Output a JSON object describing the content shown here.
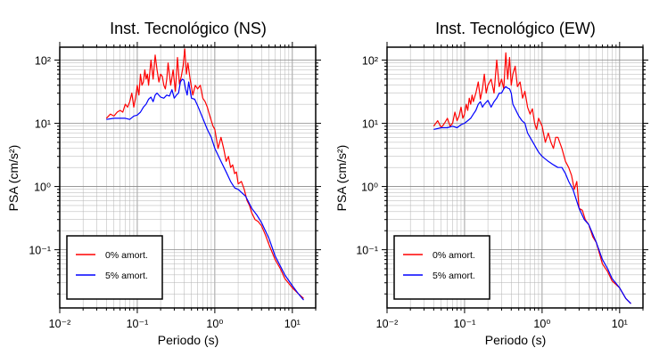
{
  "chart_data": [
    {
      "type": "line",
      "title": "Inst. Tecnológico (NS)",
      "xlabel": "Periodo (s)",
      "ylabel": "PSA (cm/s²)",
      "x_scale": "log",
      "y_scale": "log",
      "xlim": [
        0.01,
        20
      ],
      "ylim": [
        0.012,
        160
      ],
      "grid": true,
      "legend_placement": "bottom-left",
      "x_tick_labels": [
        "10⁻²",
        "10⁻¹",
        "10⁰",
        "10¹"
      ],
      "y_tick_labels": [
        "10⁻¹",
        "10⁰",
        "10¹",
        "10²"
      ],
      "series": [
        {
          "name": "0% amort.",
          "color": "#ff0000",
          "x": [
            0.04,
            0.045,
            0.05,
            0.055,
            0.06,
            0.065,
            0.07,
            0.075,
            0.08,
            0.085,
            0.09,
            0.095,
            0.1,
            0.105,
            0.11,
            0.115,
            0.12,
            0.125,
            0.13,
            0.135,
            0.14,
            0.15,
            0.16,
            0.17,
            0.18,
            0.19,
            0.2,
            0.21,
            0.22,
            0.23,
            0.24,
            0.25,
            0.27,
            0.29,
            0.31,
            0.33,
            0.35,
            0.37,
            0.39,
            0.41,
            0.43,
            0.45,
            0.48,
            0.52,
            0.56,
            0.6,
            0.65,
            0.7,
            0.75,
            0.8,
            0.85,
            0.9,
            0.95,
            1.0,
            1.1,
            1.2,
            1.3,
            1.4,
            1.5,
            1.6,
            1.7,
            1.8,
            1.9,
            2.0,
            2.2,
            2.4,
            2.6,
            2.8,
            3.0,
            3.3,
            3.6,
            4.0,
            4.5,
            5.0,
            6.0,
            7.0,
            8.0,
            10.0,
            12.0,
            14.0
          ],
          "y": [
            12,
            14,
            13,
            15,
            16,
            15,
            20,
            18,
            22,
            30,
            18,
            25,
            40,
            28,
            60,
            40,
            45,
            70,
            50,
            60,
            40,
            100,
            50,
            120,
            70,
            45,
            60,
            55,
            40,
            35,
            50,
            90,
            40,
            70,
            32,
            110,
            42,
            55,
            80,
            150,
            60,
            90,
            50,
            28,
            40,
            35,
            40,
            25,
            22,
            18,
            14,
            11,
            9,
            8,
            4,
            6,
            4,
            2.5,
            3,
            2,
            2.2,
            1.6,
            1.7,
            1.1,
            1.2,
            0.9,
            0.6,
            0.5,
            0.38,
            0.3,
            0.28,
            0.24,
            0.17,
            0.12,
            0.07,
            0.05,
            0.035,
            0.025,
            0.02,
            0.017
          ]
        },
        {
          "name": "5% amort.",
          "color": "#0000ff",
          "x": [
            0.04,
            0.05,
            0.06,
            0.07,
            0.08,
            0.09,
            0.1,
            0.11,
            0.12,
            0.13,
            0.14,
            0.15,
            0.16,
            0.17,
            0.18,
            0.2,
            0.22,
            0.24,
            0.26,
            0.28,
            0.3,
            0.32,
            0.34,
            0.36,
            0.38,
            0.4,
            0.42,
            0.44,
            0.46,
            0.5,
            0.55,
            0.6,
            0.65,
            0.7,
            0.8,
            0.9,
            1.0,
            1.2,
            1.4,
            1.6,
            1.8,
            2.0,
            2.5,
            3.0,
            3.5,
            4.0,
            5.0,
            6.0,
            7.0,
            8.0,
            10.0,
            12.0,
            14.0
          ],
          "y": [
            11.5,
            12,
            12,
            12,
            11.5,
            13,
            13.5,
            15,
            18,
            20,
            24,
            26,
            22,
            28,
            30,
            26,
            25,
            28,
            27,
            34,
            25,
            28,
            30,
            45,
            50,
            48,
            35,
            28,
            45,
            25,
            24,
            19,
            15,
            12,
            8,
            6,
            4,
            2.5,
            1.7,
            1.2,
            0.95,
            0.9,
            0.7,
            0.45,
            0.35,
            0.27,
            0.15,
            0.08,
            0.055,
            0.04,
            0.027,
            0.02,
            0.016
          ]
        }
      ]
    },
    {
      "type": "line",
      "title": "Inst. Tecnológico (EW)",
      "xlabel": "Periodo (s)",
      "ylabel": "PSA (cm/s²)",
      "x_scale": "log",
      "y_scale": "log",
      "xlim": [
        0.01,
        20
      ],
      "ylim": [
        0.012,
        160
      ],
      "grid": true,
      "legend_placement": "bottom-left",
      "x_tick_labels": [
        "10⁻²",
        "10⁻¹",
        "10⁰",
        "10¹"
      ],
      "y_tick_labels": [
        "10⁻¹",
        "10⁰",
        "10¹",
        "10²"
      ],
      "series": [
        {
          "name": "0% amort.",
          "color": "#ff0000",
          "x": [
            0.04,
            0.045,
            0.05,
            0.055,
            0.06,
            0.065,
            0.07,
            0.075,
            0.08,
            0.085,
            0.09,
            0.095,
            0.1,
            0.105,
            0.11,
            0.115,
            0.12,
            0.125,
            0.13,
            0.14,
            0.15,
            0.16,
            0.17,
            0.18,
            0.19,
            0.2,
            0.22,
            0.24,
            0.26,
            0.28,
            0.3,
            0.32,
            0.34,
            0.36,
            0.38,
            0.4,
            0.42,
            0.45,
            0.48,
            0.52,
            0.56,
            0.6,
            0.65,
            0.7,
            0.75,
            0.8,
            0.85,
            0.9,
            1.0,
            1.1,
            1.2,
            1.3,
            1.4,
            1.5,
            1.6,
            1.8,
            2.0,
            2.2,
            2.4,
            2.6,
            2.8,
            3.0,
            3.3,
            3.6,
            4.0,
            4.5,
            5.0,
            6.0,
            7.0,
            8.0,
            10.0,
            12.0,
            14.0
          ],
          "y": [
            9,
            11,
            8.5,
            10,
            12,
            9,
            10,
            15,
            11,
            13,
            18,
            12,
            14,
            20,
            16,
            25,
            20,
            28,
            22,
            30,
            45,
            24,
            35,
            60,
            30,
            40,
            50,
            30,
            100,
            38,
            50,
            35,
            130,
            50,
            110,
            40,
            60,
            80,
            38,
            45,
            25,
            32,
            18,
            14,
            17,
            10,
            8,
            12,
            9,
            5,
            7,
            5,
            4,
            6,
            6,
            4,
            2.5,
            2,
            1.5,
            0.9,
            1.2,
            0.45,
            0.42,
            0.3,
            0.25,
            0.16,
            0.13,
            0.06,
            0.045,
            0.032,
            0.025,
            0.017,
            0.014
          ]
        },
        {
          "name": "5% amort.",
          "color": "#0000ff",
          "x": [
            0.04,
            0.05,
            0.06,
            0.07,
            0.08,
            0.09,
            0.1,
            0.11,
            0.12,
            0.13,
            0.14,
            0.15,
            0.16,
            0.17,
            0.18,
            0.2,
            0.22,
            0.24,
            0.26,
            0.28,
            0.3,
            0.32,
            0.34,
            0.36,
            0.38,
            0.4,
            0.42,
            0.45,
            0.5,
            0.55,
            0.6,
            0.65,
            0.7,
            0.8,
            0.9,
            1.0,
            1.2,
            1.4,
            1.6,
            1.8,
            2.0,
            2.2,
            2.5,
            3.0,
            3.5,
            4.0,
            5.0,
            6.0,
            7.0,
            8.0,
            10.0,
            12.0,
            14.0
          ],
          "y": [
            8,
            8.5,
            8.5,
            9,
            8.5,
            9.5,
            10,
            11,
            12,
            14,
            16,
            20,
            22,
            18,
            20,
            23,
            18,
            22,
            25,
            30,
            30,
            35,
            38,
            36,
            35,
            30,
            20,
            17,
            13,
            11,
            10,
            7,
            6,
            4.5,
            3.5,
            3,
            2.5,
            2.2,
            2,
            2,
            1.6,
            1.2,
            0.9,
            0.45,
            0.3,
            0.25,
            0.13,
            0.07,
            0.05,
            0.035,
            0.025,
            0.017,
            0.014
          ]
        }
      ]
    }
  ]
}
